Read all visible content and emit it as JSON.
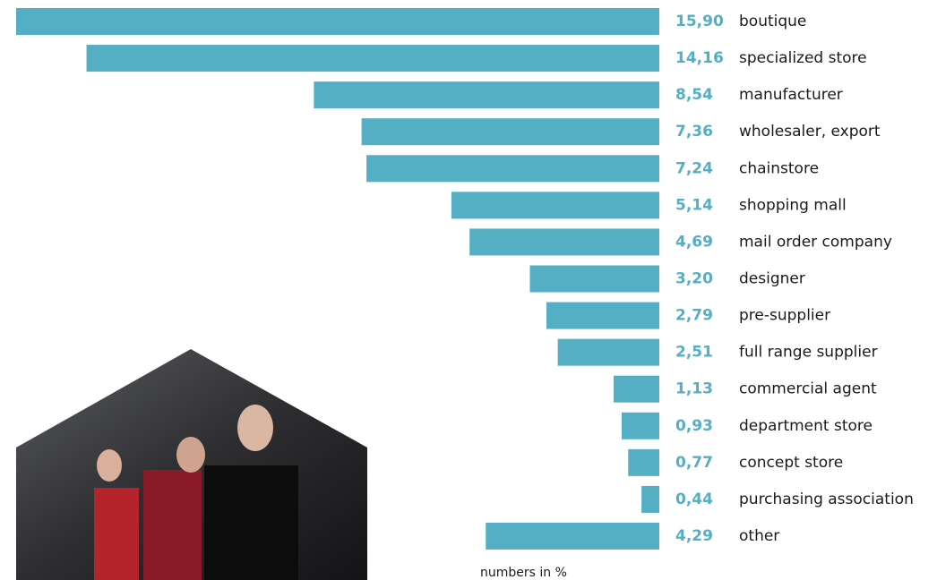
{
  "chart_data": {
    "type": "bar",
    "orientation": "horizontal",
    "color": "#55afc4",
    "categories": [
      "boutique",
      "specialized store",
      "manufacturer",
      "wholesaler, export",
      "chainstore",
      "shopping mall",
      "mail order company",
      "designer",
      "pre-supplier",
      "full range supplier",
      "commercial agent",
      "department store",
      "concept store",
      "purchasing association",
      "other"
    ],
    "values": [
      15.9,
      14.16,
      8.54,
      7.36,
      7.24,
      5.14,
      4.69,
      3.2,
      2.79,
      2.51,
      1.13,
      0.93,
      0.77,
      0.44,
      4.29
    ],
    "value_labels": [
      "15,90",
      "14,16",
      "8,54",
      "7,36",
      "7,24",
      "5,14",
      "4,69",
      "3,20",
      "2,79",
      "2,51",
      "1,13",
      "0,93",
      "0,77",
      "0,44",
      "4,29"
    ],
    "note": "numbers in %"
  }
}
